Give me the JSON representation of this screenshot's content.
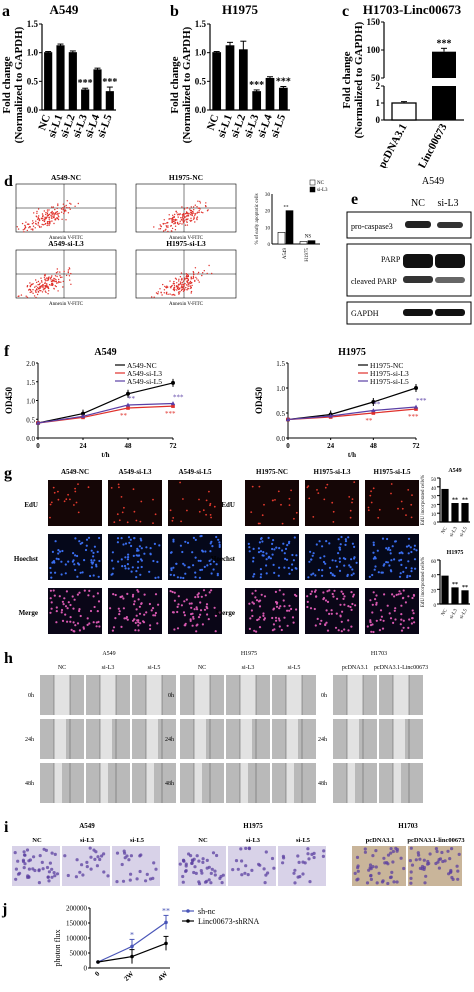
{
  "figure": {
    "panel_a": {
      "letter": "a",
      "title": "A549",
      "ylabel": "Fold change",
      "ylabel2": "(Normalized to GAPDH)"
    },
    "panel_b": {
      "letter": "b",
      "title": "H1975",
      "ylabel": "Fold change",
      "ylabel2": "(Normalized to GAPDH)"
    },
    "panel_c": {
      "letter": "c",
      "title": "H1703-Linc00673",
      "ylabel": "Fold change",
      "ylabel2": "(Normalized to GAPDH)"
    },
    "panel_d": {
      "letter": "d",
      "flow_titles": [
        "A549-NC",
        "H1975-NC",
        "A549-si-L3",
        "H1975-si-L3"
      ],
      "xlabel": "Annexin V-FITC",
      "ylabel": "% of early apoptotic cells",
      "legend": [
        "NC",
        "si-L3"
      ],
      "categories": [
        "A549",
        "H1975"
      ]
    },
    "panel_e": {
      "letter": "e",
      "title": "A549",
      "lanes": [
        "NC",
        "si-L3"
      ],
      "bands": [
        "pro-caspase3",
        "PARP",
        "cleaved PARP",
        "GAPDH"
      ]
    },
    "panel_f": {
      "letter": "f",
      "titles": [
        "A549",
        "H1975"
      ],
      "ylabel": "OD450",
      "xlabel": "t/h",
      "legend_left": [
        "A549-NC",
        "A549-si-L3",
        "A549-si-L5"
      ],
      "legend_right": [
        "H1975-NC",
        "H1975-si-L3",
        "H1975-si-L5"
      ]
    },
    "panel_g": {
      "letter": "g",
      "left_cols": [
        "A549-NC",
        "A549-si-L3",
        "A549-si-L5"
      ],
      "right_cols": [
        "H1975-NC",
        "H1975-si-L3",
        "H1975-si-L5"
      ],
      "rows": [
        "EdU",
        "Hoechst",
        "Merge"
      ],
      "bar_titles": [
        "A549",
        "H1975"
      ],
      "bar_ylabel": "EdU incorporated cells%",
      "bar_cats": [
        "NC",
        "si-L3",
        "si-L5"
      ]
    },
    "panel_h": {
      "letter": "h",
      "groups": [
        {
          "title": "A549",
          "cols": [
            "NC",
            "si-L3",
            "si-L5"
          ]
        },
        {
          "title": "H1975",
          "cols": [
            "NC",
            "si-L3",
            "si-L5"
          ]
        },
        {
          "title": "H1703",
          "cols": [
            "pcDNA3.1",
            "pcDNA3.1-Linc00673"
          ]
        }
      ],
      "rows": [
        "0h",
        "24h",
        "48h"
      ]
    },
    "panel_i": {
      "letter": "i",
      "groups": [
        {
          "title": "A549",
          "cols": [
            "NC",
            "si-L3",
            "si-L5"
          ]
        },
        {
          "title": "H1975",
          "cols": [
            "NC",
            "si-L3",
            "si-L5"
          ]
        },
        {
          "title": "H1703",
          "cols": [
            "pcDNA3.1",
            "pcDNA3.1-linc00673"
          ]
        }
      ]
    },
    "panel_j": {
      "letter": "j",
      "ylabel": "photon flux",
      "legend": [
        "sh-nc",
        "Linc00673-shRNA"
      ]
    },
    "sig": {
      "three": "***",
      "two": "**",
      "one": "*",
      "ns": "NS"
    }
  },
  "chart_data": [
    {
      "id": "a",
      "type": "bar",
      "title": "A549",
      "ylabel": "Fold change (Normalized to GAPDH)",
      "categories": [
        "NC",
        "si-L1",
        "si-L2",
        "si-L3",
        "si-L4",
        "si-L5"
      ],
      "values": [
        1.0,
        1.12,
        1.0,
        0.35,
        0.7,
        0.32
      ],
      "errors": [
        0.02,
        0.03,
        0.03,
        0.03,
        0.03,
        0.08
      ],
      "ylim": [
        0,
        1.5
      ],
      "yticks": [
        "0.0",
        "0.5",
        "1.0",
        "1.5"
      ],
      "sig": [
        "",
        "",
        "",
        "***",
        "",
        "***"
      ]
    },
    {
      "id": "b",
      "type": "bar",
      "title": "H1975",
      "ylabel": "Fold change (Normalized to GAPDH)",
      "categories": [
        "NC",
        "si-L1",
        "si-L2",
        "si-L3",
        "si-L4",
        "si-L5"
      ],
      "values": [
        1.0,
        1.12,
        1.05,
        0.32,
        0.55,
        0.38
      ],
      "errors": [
        0.02,
        0.06,
        0.15,
        0.03,
        0.03,
        0.03
      ],
      "ylim": [
        0,
        1.5
      ],
      "yticks": [
        "0.0",
        "0.5",
        "1.0",
        "1.5"
      ],
      "sig": [
        "",
        "",
        "",
        "***",
        "",
        "***"
      ]
    },
    {
      "id": "c",
      "type": "bar",
      "title": "H1703-Linc00673",
      "ylabel": "Fold change (Normalized to GAPDH)",
      "categories": [
        "pcDNA3.1",
        "pcDNA3.1-Linc00673"
      ],
      "values": [
        1.0,
        97
      ],
      "errors": [
        0.08,
        6
      ],
      "yticks": [
        "0",
        "1",
        "2",
        "50",
        "100",
        "150"
      ],
      "sig": [
        "",
        "***"
      ]
    },
    {
      "id": "d",
      "type": "bar",
      "ylabel": "% of early apoptotic cells",
      "categories": [
        "A549",
        "H1975"
      ],
      "series": [
        {
          "name": "NC",
          "values": [
            7,
            1.5
          ]
        },
        {
          "name": "si-L3",
          "values": [
            20,
            2
          ]
        }
      ],
      "ylim": [
        0,
        30
      ],
      "yticks": [
        "0",
        "10",
        "20",
        "30"
      ]
    },
    {
      "id": "f1",
      "type": "line",
      "title": "A549",
      "ylabel": "OD450",
      "xlabel": "t/h",
      "x": [
        0,
        24,
        48,
        72
      ],
      "xticks": [
        "0",
        "24",
        "48",
        "72"
      ],
      "yticks": [
        "0.0",
        "0.5",
        "1.0",
        "1.5",
        "2.0"
      ],
      "ylim": [
        0,
        2.0
      ],
      "series": [
        {
          "name": "A549-NC",
          "values": [
            0.4,
            0.65,
            1.18,
            1.47
          ]
        },
        {
          "name": "A549-si-L3",
          "values": [
            0.4,
            0.55,
            0.8,
            0.85
          ]
        },
        {
          "name": "A549-si-L5",
          "values": [
            0.4,
            0.58,
            0.88,
            0.92
          ]
        }
      ]
    },
    {
      "id": "f2",
      "type": "line",
      "title": "H1975",
      "ylabel": "OD450",
      "xlabel": "t/h",
      "x": [
        0,
        24,
        48,
        72
      ],
      "xticks": [
        "0",
        "24",
        "48",
        "72"
      ],
      "yticks": [
        "0.0",
        "0.5",
        "1.0",
        "1.5"
      ],
      "ylim": [
        0,
        1.5
      ],
      "series": [
        {
          "name": "H1975-NC",
          "values": [
            0.37,
            0.47,
            0.72,
            1.0
          ]
        },
        {
          "name": "H1975-si-L3",
          "values": [
            0.37,
            0.42,
            0.5,
            0.58
          ]
        },
        {
          "name": "H1975-si-L5",
          "values": [
            0.37,
            0.44,
            0.55,
            0.62
          ]
        }
      ]
    },
    {
      "id": "g1",
      "type": "bar",
      "title": "A549",
      "ylabel": "EdU incorporated cells%",
      "categories": [
        "NC",
        "si-L3",
        "si-L5"
      ],
      "values": [
        37,
        21,
        21
      ],
      "ylim": [
        0,
        50
      ],
      "yticks": [
        "0",
        "10",
        "20",
        "30",
        "40",
        "50"
      ],
      "sig": [
        "",
        "**",
        "**"
      ]
    },
    {
      "id": "g2",
      "type": "bar",
      "title": "H1975",
      "ylabel": "EdU incorporated cells%",
      "categories": [
        "NC",
        "si-L3",
        "si-L5"
      ],
      "values": [
        38,
        22,
        18
      ],
      "ylim": [
        0,
        60
      ],
      "yticks": [
        "0",
        "20",
        "40",
        "60"
      ],
      "sig": [
        "",
        "**",
        "**"
      ]
    },
    {
      "id": "j",
      "type": "line",
      "ylabel": "photon flux",
      "x": [
        "0",
        "2W",
        "4W"
      ],
      "yticks": [
        "0",
        "50000",
        "100000",
        "150000",
        "200000"
      ],
      "ylim": [
        0,
        200000
      ],
      "series": [
        {
          "name": "sh-nc",
          "values": [
            20000,
            72000,
            152000
          ]
        },
        {
          "name": "Linc00673-shRNA",
          "values": [
            20000,
            38000,
            82000
          ]
        }
      ]
    }
  ]
}
